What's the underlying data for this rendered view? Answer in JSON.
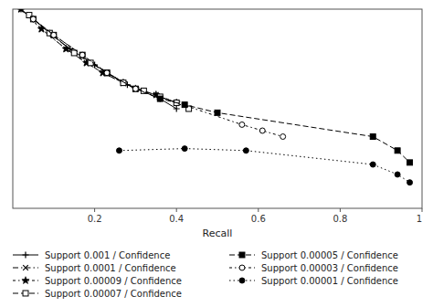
{
  "chart_data": {
    "type": "line",
    "x_label": "Recall",
    "xlim": [
      0,
      1.0
    ],
    "ylim": [
      0,
      1.0
    ],
    "xticks": [
      0.2,
      0.4,
      0.6,
      0.8,
      1
    ],
    "tick_labels": "x",
    "legend": "bottom",
    "series": [
      {
        "name": "Support 0.001 / Confidence",
        "color": "black",
        "marker": "plus",
        "line_style": "solid",
        "x": [
          0.02,
          0.05,
          0.09,
          0.14,
          0.2,
          0.28,
          0.36,
          0.4
        ],
        "values": [
          1.0,
          0.95,
          0.88,
          0.8,
          0.72,
          0.62,
          0.55,
          0.5
        ]
      },
      {
        "name": "Support 0.0001 / Confidence",
        "color": "black",
        "marker": "x",
        "line_style": "dash-dot",
        "x": [
          0.02,
          0.07,
          0.13,
          0.18,
          0.22,
          0.27,
          0.3,
          0.35,
          0.4
        ],
        "values": [
          1.0,
          0.9,
          0.8,
          0.73,
          0.68,
          0.63,
          0.6,
          0.57,
          0.53
        ]
      },
      {
        "name": "Support 0.00009 / Confidence",
        "color": "black",
        "marker": "star",
        "line_style": "short-dash-dot",
        "x": [
          0.02,
          0.07,
          0.13,
          0.18,
          0.22,
          0.27,
          0.3,
          0.35,
          0.4
        ],
        "values": [
          1.0,
          0.9,
          0.8,
          0.73,
          0.68,
          0.63,
          0.6,
          0.57,
          0.53
        ]
      },
      {
        "name": "Support 0.00007 / Confidence",
        "color": "black",
        "marker": "square-open",
        "line_style": "dashed",
        "x": [
          0.04,
          0.09,
          0.15,
          0.19,
          0.23,
          0.27,
          0.32,
          0.36,
          0.4,
          0.43
        ],
        "values": [
          0.97,
          0.88,
          0.78,
          0.73,
          0.68,
          0.63,
          0.59,
          0.56,
          0.53,
          0.5
        ]
      },
      {
        "name": "Support 0.00005 / Confidence",
        "color": "black",
        "marker": "square",
        "line_style": "dashed",
        "x": [
          0.05,
          0.1,
          0.17,
          0.23,
          0.3,
          0.36,
          0.42,
          0.5,
          0.88,
          0.94,
          0.97
        ],
        "values": [
          0.95,
          0.87,
          0.77,
          0.68,
          0.6,
          0.55,
          0.52,
          0.48,
          0.36,
          0.29,
          0.23
        ]
      },
      {
        "name": "Support 0.00003 / Confidence",
        "color": "black",
        "marker": "circle-open",
        "line_style": "short-dash-dot",
        "x": [
          0.05,
          0.1,
          0.17,
          0.23,
          0.3,
          0.56,
          0.61,
          0.66
        ],
        "values": [
          0.95,
          0.87,
          0.77,
          0.68,
          0.6,
          0.42,
          0.39,
          0.36
        ]
      },
      {
        "name": "Support 0.00001 / Confidence",
        "color": "black",
        "marker": "circle",
        "line_style": "dotted",
        "x": [
          0.26,
          0.42,
          0.57,
          0.88,
          0.94,
          0.97
        ],
        "values": [
          0.29,
          0.3,
          0.29,
          0.22,
          0.17,
          0.13
        ]
      }
    ]
  }
}
